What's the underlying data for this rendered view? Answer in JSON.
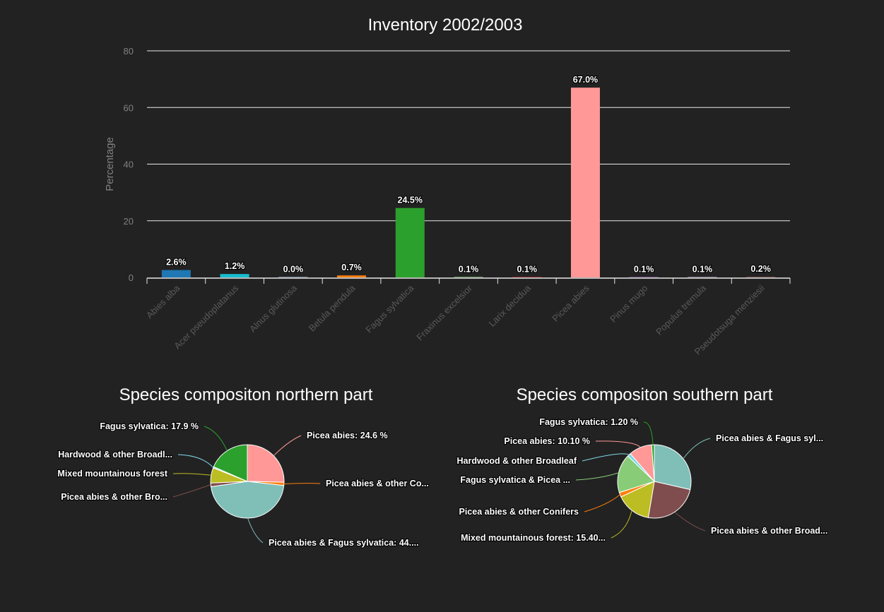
{
  "chart_data": [
    {
      "type": "bar",
      "title": "Inventory 2002/2003",
      "xlabel": "",
      "ylabel": "Percentage",
      "ylim": [
        0,
        80
      ],
      "yticks": [
        "0",
        "20",
        "40",
        "60",
        "80"
      ],
      "grid": true,
      "categories": [
        "Abies alba",
        "Acer pseudoplatanus",
        "Alnus glutinosa",
        "Betula pendula",
        "Fagus sylvatica",
        "Fraxinus excelsior",
        "Larix decidua",
        "Picea abies",
        "Pinus mugo",
        "Populus tremula",
        "Pseudotsuga menziesii"
      ],
      "values": [
        2.6,
        1.2,
        0.0,
        0.7,
        24.5,
        0.1,
        0.1,
        67.0,
        0.1,
        0.1,
        0.2
      ],
      "data_labels": [
        "2.6%",
        "1.2%",
        "0.0%",
        "0.7%",
        "24.5%",
        "0.1%",
        "0.1%",
        "67.0%",
        "0.1%",
        "0.1%",
        "0.2%"
      ],
      "colors": [
        "#1f77b4",
        "#17becf",
        "#aec7e8",
        "#ff7f0e",
        "#2ca02c",
        "#98df8a",
        "#d62728",
        "#ff9896",
        "#9467bd",
        "#c5b0d5",
        "#8c564b"
      ]
    },
    {
      "type": "pie",
      "title": "Species compositon northern part",
      "slices": [
        {
          "label": "Picea abies: 24.6 %",
          "value": 24.6,
          "color": "#ff9896"
        },
        {
          "label": "Picea abies & other Co...",
          "value": 1.4,
          "color": "#ff7f0e"
        },
        {
          "label": "Picea abies & Fagus sylvatica: 44....",
          "value": 44.5,
          "color": "#7fbfb8"
        },
        {
          "label": "Picea abies & other Bro...",
          "value": 1.6,
          "color": "#7f4d4d"
        },
        {
          "label": "Mixed mountainous forest",
          "value": 6.5,
          "color": "#bcbd22"
        },
        {
          "label": "Hardwood & other Broadl...",
          "value": 0.5,
          "color": "#7fd8e8"
        },
        {
          "label": "Fagus sylvatica: 17.9 %",
          "value": 17.9,
          "color": "#2ca02c"
        }
      ]
    },
    {
      "type": "pie",
      "title": "Species compositon southern part",
      "slices": [
        {
          "label": "Picea abies & Fagus syl...",
          "value": 28.5,
          "color": "#7fbfb8"
        },
        {
          "label": "Picea abies & other Broad...",
          "value": 24.0,
          "color": "#7f4d4d"
        },
        {
          "label": "Mixed mountainous forest: 15.40...",
          "value": 15.4,
          "color": "#bcbd22"
        },
        {
          "label": "Picea abies & other Conifers",
          "value": 2.0,
          "color": "#ff7f0e"
        },
        {
          "label": "Fagus sylvatica & Picea ...",
          "value": 17.0,
          "color": "#88cc77"
        },
        {
          "label": "Hardwood & other Broadleaf",
          "value": 1.5,
          "color": "#7fd8e8"
        },
        {
          "label": "Picea abies: 10.10 %",
          "value": 10.1,
          "color": "#ff9896"
        },
        {
          "label": "Fagus sylvatica: 1.20 %",
          "value": 1.2,
          "color": "#2ca02c"
        }
      ]
    }
  ]
}
